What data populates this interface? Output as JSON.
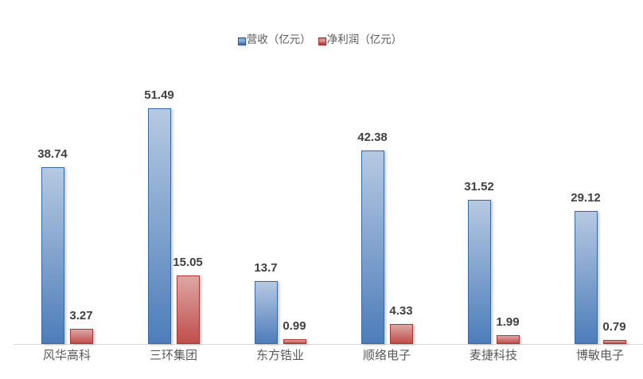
{
  "chart_data": {
    "type": "bar",
    "title": "",
    "xlabel": "",
    "ylabel": "",
    "categories": [
      "风华高科",
      "三环集团",
      "东方锆业",
      "顺络电子",
      "麦捷科技",
      "博敏电子"
    ],
    "series": [
      {
        "name": "营收（亿元）",
        "values": [
          38.74,
          51.49,
          13.7,
          42.38,
          31.52,
          29.12
        ],
        "color": "#4f81bd",
        "fill_top": "#b6c9e2",
        "fill_bottom": "#4d7dba",
        "border_color": "#3a68a0",
        "marker_border": "#2d5a92",
        "marker_gradient": [
          "#6f9ace",
          "#8fb2de",
          "#4f81bd",
          "#3a6aa5"
        ]
      },
      {
        "name": "净利润（亿元）",
        "values": [
          3.27,
          15.05,
          0.99,
          4.33,
          1.99,
          0.79
        ],
        "color": "#c0504d",
        "fill_top": "#dda7a4",
        "fill_bottom": "#bf4e4b",
        "border_color": "#a63734",
        "marker_border": "#9c322f",
        "marker_gradient": [
          "#cc7673",
          "#dba09d",
          "#c0504d",
          "#a83f3c"
        ]
      }
    ],
    "ylim": [
      0,
      60
    ],
    "grid": false,
    "legend_position": "top-center",
    "value_labels": "outside-end",
    "background_color": "#ffffff",
    "axis_line_color": "#d9d9d9",
    "value_label_color": "#404040",
    "category_label_color": "#595959"
  }
}
